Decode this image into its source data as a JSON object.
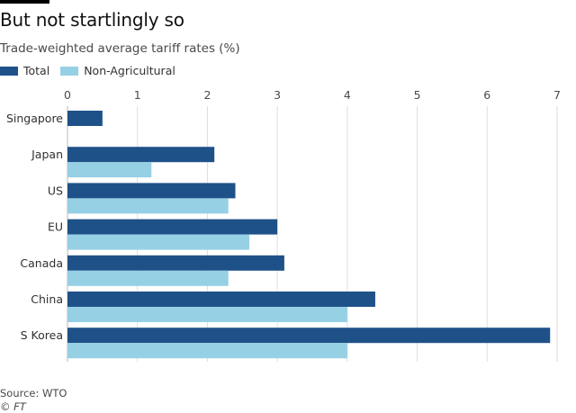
{
  "title": "But not startlingly so",
  "subtitle": "Trade-weighted average tariff rates (%)",
  "legend": [
    {
      "label": "Total",
      "color": "#1f5189"
    },
    {
      "label": "Non-Agricultural",
      "color": "#96d0e5"
    }
  ],
  "footer": {
    "source": "Source: WTO",
    "credit": "© FT"
  },
  "chart_data": {
    "type": "bar",
    "orientation": "horizontal",
    "categories": [
      "Singapore",
      "Japan",
      "US",
      "EU",
      "Canada",
      "China",
      "S Korea"
    ],
    "series": [
      {
        "name": "Total",
        "color": "#1f5189",
        "values": [
          0.5,
          2.1,
          2.4,
          3.0,
          3.1,
          4.4,
          6.9
        ]
      },
      {
        "name": "Non-Agricultural",
        "color": "#96d0e5",
        "values": [
          null,
          1.2,
          2.3,
          2.6,
          2.3,
          4.0,
          4.0
        ]
      }
    ],
    "xlim": [
      0,
      7
    ],
    "xticks": [
      "0",
      "1",
      "2",
      "3",
      "4",
      "5",
      "6",
      "7"
    ],
    "grid": true,
    "legend_position": "top-left"
  }
}
